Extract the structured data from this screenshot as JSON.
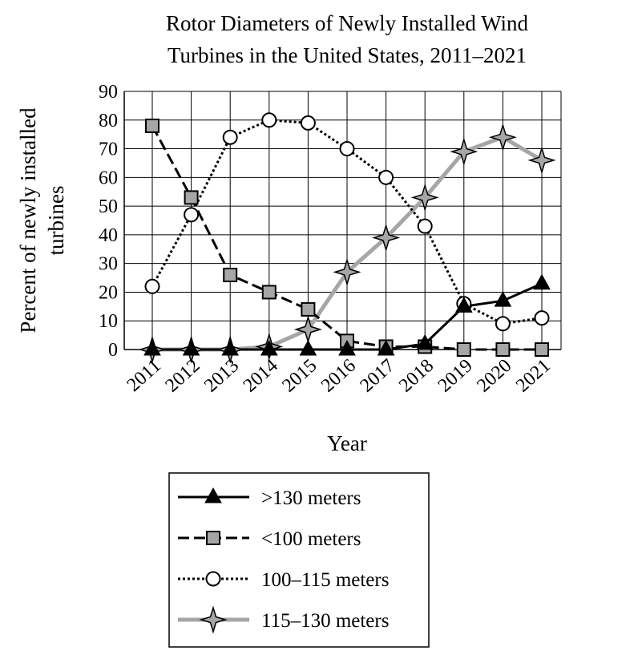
{
  "chart_data": {
    "type": "line",
    "title_lines": [
      "Rotor Diameters of Newly Installed Wind",
      "Turbines in the United States, 2011–2021"
    ],
    "xlabel": "Year",
    "ylabel_lines": [
      "Percent of newly installed",
      "turbines"
    ],
    "categories": [
      "2011",
      "2012",
      "2013",
      "2014",
      "2015",
      "2016",
      "2017",
      "2018",
      "2019",
      "2020",
      "2021"
    ],
    "ylim": [
      0,
      90
    ],
    "yticks": [
      0,
      10,
      20,
      30,
      40,
      50,
      60,
      70,
      80,
      90
    ],
    "grid": true,
    "legend_position": "bottom-center",
    "series": [
      {
        "name": ">130 meters",
        "marker": "triangle",
        "line_style": "solid",
        "color": "#000000",
        "values": [
          0,
          0,
          0,
          0,
          0,
          0,
          0,
          2,
          15,
          17,
          23
        ]
      },
      {
        "name": "<100 meters",
        "marker": "square",
        "line_style": "dashed",
        "color": "#000000",
        "values": [
          78,
          53,
          26,
          20,
          14,
          3,
          1,
          1,
          0,
          0,
          0
        ]
      },
      {
        "name": "100–115 meters",
        "marker": "circle",
        "line_style": "dotted",
        "color": "#000000",
        "values": [
          22,
          47,
          74,
          80,
          79,
          70,
          60,
          43,
          16,
          9,
          11
        ]
      },
      {
        "name": "115–130 meters",
        "marker": "star",
        "line_style": "solid",
        "color": "#a6a6a6",
        "values": [
          0,
          0,
          0,
          1,
          7,
          27,
          39,
          53,
          69,
          74,
          66
        ]
      }
    ]
  }
}
